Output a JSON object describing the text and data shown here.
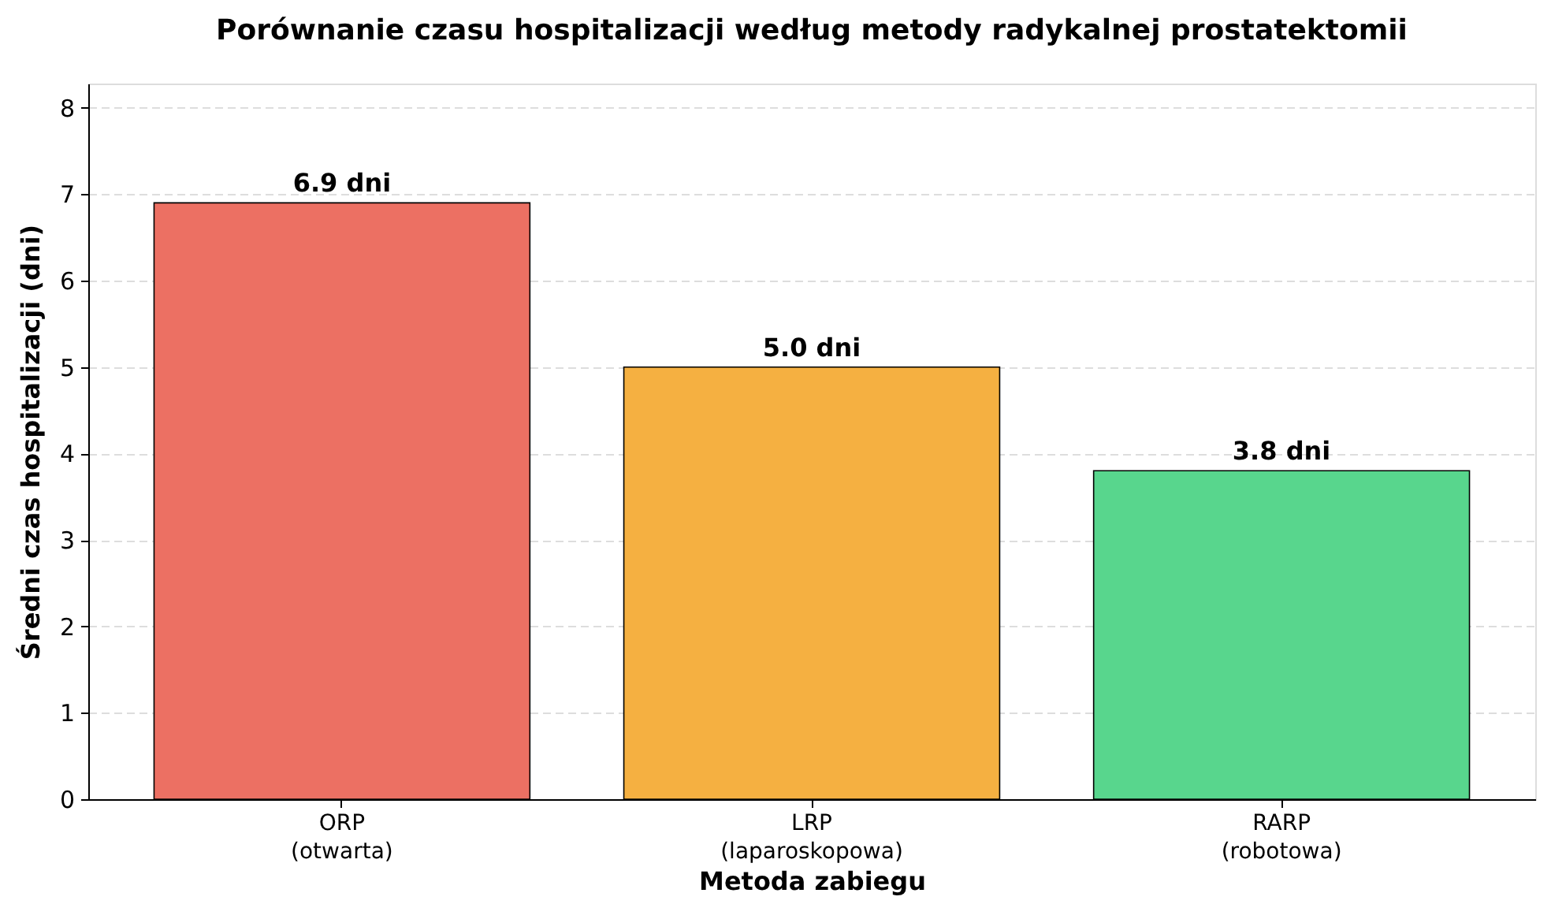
{
  "chart_data": {
    "type": "bar",
    "title": "Porównanie czasu hospitalizacji według metody radykalnej prostatektomii",
    "xlabel": "Metoda zabiegu",
    "ylabel": "Średni czas hospitalizacji (dni)",
    "categories": [
      "ORP\n(otwarta)",
      "LRP\n(laparoskopowa)",
      "RARP\n(robotowa)"
    ],
    "values": [
      6.9,
      5.0,
      3.8
    ],
    "colors": [
      "#ec7063",
      "#f5b041",
      "#58d68d"
    ],
    "value_labels": [
      "6.9 dni",
      "5.0 dni",
      "3.8 dni"
    ],
    "ylim": [
      0,
      8.28
    ],
    "yticks": [
      0,
      1,
      2,
      3,
      4,
      5,
      6,
      7,
      8
    ],
    "grid": "y"
  }
}
